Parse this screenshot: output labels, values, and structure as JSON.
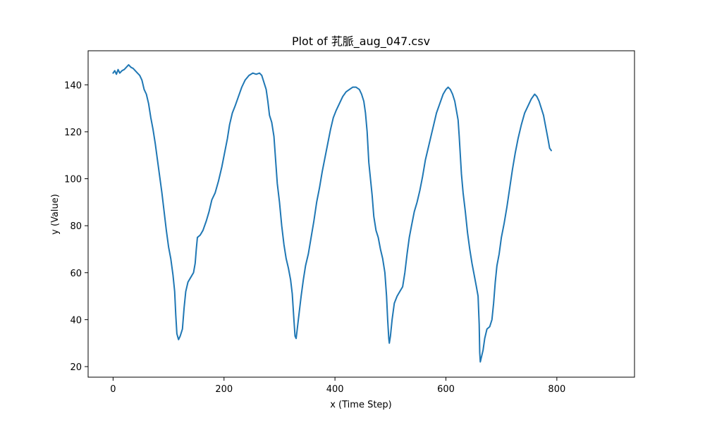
{
  "chart_data": {
    "type": "line",
    "title": "Plot of 芤脈_aug_047.csv",
    "xlabel": "x (Time Step)",
    "ylabel": "y (Value)",
    "xlim": [
      -45,
      940
    ],
    "ylim": [
      15.5,
      154.5
    ],
    "xticks": [
      0,
      200,
      400,
      600,
      800
    ],
    "yticks": [
      20,
      40,
      60,
      80,
      100,
      120,
      140
    ],
    "grid": false,
    "legend": "none",
    "colors": {
      "line": "#1f77b4",
      "axes": "#000000",
      "background": "#ffffff"
    },
    "series": [
      {
        "points": [
          [
            0,
            145
          ],
          [
            3,
            146
          ],
          [
            6,
            144.5
          ],
          [
            9,
            146.5
          ],
          [
            12,
            145
          ],
          [
            16,
            146
          ],
          [
            20,
            146.5
          ],
          [
            24,
            147.5
          ],
          [
            28,
            148.5
          ],
          [
            32,
            147.5
          ],
          [
            36,
            147
          ],
          [
            40,
            146
          ],
          [
            44,
            145
          ],
          [
            48,
            144
          ],
          [
            52,
            142
          ],
          [
            56,
            138
          ],
          [
            60,
            136
          ],
          [
            64,
            132
          ],
          [
            68,
            126
          ],
          [
            72,
            121
          ],
          [
            76,
            115
          ],
          [
            80,
            108
          ],
          [
            84,
            101
          ],
          [
            88,
            94
          ],
          [
            92,
            86
          ],
          [
            96,
            78
          ],
          [
            100,
            71
          ],
          [
            104,
            66
          ],
          [
            108,
            59
          ],
          [
            111,
            52
          ],
          [
            113,
            42
          ],
          [
            115,
            34
          ],
          [
            118,
            31.5
          ],
          [
            121,
            33
          ],
          [
            125,
            36
          ],
          [
            128,
            45
          ],
          [
            131,
            52
          ],
          [
            135,
            56
          ],
          [
            140,
            58
          ],
          [
            145,
            60
          ],
          [
            148,
            64
          ],
          [
            150,
            70
          ],
          [
            152,
            75
          ],
          [
            157,
            76
          ],
          [
            162,
            78
          ],
          [
            168,
            82
          ],
          [
            173,
            86
          ],
          [
            178,
            91
          ],
          [
            184,
            94
          ],
          [
            190,
            99
          ],
          [
            196,
            105
          ],
          [
            201,
            111
          ],
          [
            206,
            117
          ],
          [
            210,
            123
          ],
          [
            215,
            128
          ],
          [
            220,
            131
          ],
          [
            226,
            135
          ],
          [
            232,
            139
          ],
          [
            238,
            142
          ],
          [
            245,
            144
          ],
          [
            252,
            145
          ],
          [
            258,
            144.5
          ],
          [
            264,
            145
          ],
          [
            268,
            144
          ],
          [
            272,
            141
          ],
          [
            276,
            138
          ],
          [
            279,
            133
          ],
          [
            282,
            127
          ],
          [
            286,
            124
          ],
          [
            290,
            118
          ],
          [
            293,
            108
          ],
          [
            296,
            98
          ],
          [
            300,
            90
          ],
          [
            304,
            80
          ],
          [
            308,
            72
          ],
          [
            312,
            66
          ],
          [
            316,
            62
          ],
          [
            320,
            57
          ],
          [
            323,
            51
          ],
          [
            326,
            40
          ],
          [
            328,
            33
          ],
          [
            330,
            32
          ],
          [
            332,
            36
          ],
          [
            335,
            42
          ],
          [
            339,
            50
          ],
          [
            343,
            57
          ],
          [
            347,
            63
          ],
          [
            352,
            68
          ],
          [
            357,
            75
          ],
          [
            362,
            82
          ],
          [
            367,
            90
          ],
          [
            372,
            96
          ],
          [
            377,
            103
          ],
          [
            382,
            109
          ],
          [
            387,
            115
          ],
          [
            392,
            121
          ],
          [
            397,
            126
          ],
          [
            402,
            129
          ],
          [
            408,
            132
          ],
          [
            414,
            135
          ],
          [
            420,
            137
          ],
          [
            426,
            138
          ],
          [
            432,
            139
          ],
          [
            438,
            139
          ],
          [
            444,
            138
          ],
          [
            448,
            136
          ],
          [
            452,
            133
          ],
          [
            455,
            128
          ],
          [
            458,
            120
          ],
          [
            461,
            107
          ],
          [
            464,
            100
          ],
          [
            467,
            93
          ],
          [
            470,
            84
          ],
          [
            474,
            78
          ],
          [
            478,
            75
          ],
          [
            482,
            70
          ],
          [
            486,
            66
          ],
          [
            490,
            60
          ],
          [
            493,
            50
          ],
          [
            495,
            40
          ],
          [
            497,
            32
          ],
          [
            498,
            30
          ],
          [
            500,
            33
          ],
          [
            503,
            40
          ],
          [
            507,
            47
          ],
          [
            512,
            50
          ],
          [
            517,
            52
          ],
          [
            522,
            54
          ],
          [
            526,
            60
          ],
          [
            530,
            68
          ],
          [
            534,
            75
          ],
          [
            538,
            80
          ],
          [
            543,
            86
          ],
          [
            548,
            90
          ],
          [
            553,
            95
          ],
          [
            558,
            101
          ],
          [
            563,
            108
          ],
          [
            568,
            113
          ],
          [
            573,
            118
          ],
          [
            578,
            123
          ],
          [
            583,
            128
          ],
          [
            589,
            132
          ],
          [
            595,
            136
          ],
          [
            600,
            138
          ],
          [
            604,
            139
          ],
          [
            608,
            138
          ],
          [
            612,
            136
          ],
          [
            616,
            133
          ],
          [
            619,
            129
          ],
          [
            622,
            125
          ],
          [
            624,
            118
          ],
          [
            626,
            110
          ],
          [
            628,
            102
          ],
          [
            631,
            94
          ],
          [
            635,
            86
          ],
          [
            639,
            77
          ],
          [
            643,
            70
          ],
          [
            647,
            64
          ],
          [
            651,
            59
          ],
          [
            655,
            54
          ],
          [
            658,
            50
          ],
          [
            660,
            38
          ],
          [
            661,
            26
          ],
          [
            662,
            22
          ],
          [
            664,
            24
          ],
          [
            667,
            27
          ],
          [
            670,
            32
          ],
          [
            674,
            36
          ],
          [
            679,
            37
          ],
          [
            683,
            40
          ],
          [
            686,
            47
          ],
          [
            689,
            56
          ],
          [
            692,
            63
          ],
          [
            696,
            68
          ],
          [
            700,
            75
          ],
          [
            705,
            81
          ],
          [
            710,
            88
          ],
          [
            715,
            96
          ],
          [
            720,
            104
          ],
          [
            725,
            111
          ],
          [
            730,
            117
          ],
          [
            736,
            123
          ],
          [
            742,
            128
          ],
          [
            748,
            131
          ],
          [
            754,
            134
          ],
          [
            760,
            136
          ],
          [
            764,
            135
          ],
          [
            768,
            133
          ],
          [
            772,
            130
          ],
          [
            776,
            127
          ],
          [
            780,
            122
          ],
          [
            784,
            117
          ],
          [
            787,
            113
          ],
          [
            790,
            112
          ]
        ]
      }
    ]
  }
}
